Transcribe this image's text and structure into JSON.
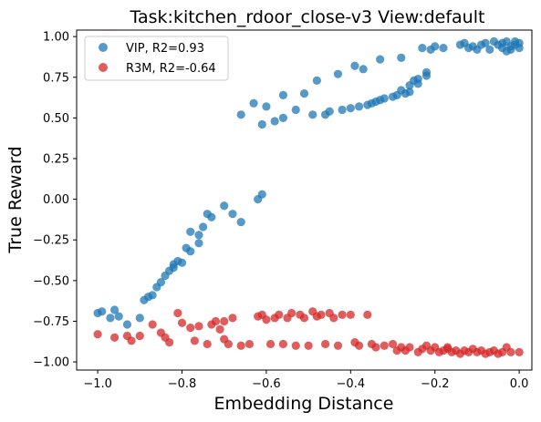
{
  "chart_data": {
    "type": "scatter",
    "title": "Task:kitchen_rdoor_close-v3 View:default",
    "xlabel": "Embedding Distance",
    "ylabel": "True Reward",
    "xlim": [
      -1.05,
      0.03
    ],
    "ylim": [
      -1.05,
      1.04
    ],
    "xticks": [
      "−1.0",
      "−0.8",
      "−0.6",
      "−0.4",
      "−0.2",
      "0.0"
    ],
    "xtick_values": [
      -1.0,
      -0.8,
      -0.6,
      -0.4,
      -0.2,
      0.0
    ],
    "yticks": [
      "1.00",
      "0.75",
      "0.50",
      "0.25",
      "0.00",
      "−0.25",
      "−0.50",
      "−0.75",
      "−1.00"
    ],
    "ytick_values": [
      1.0,
      0.75,
      0.5,
      0.25,
      0.0,
      -0.25,
      -0.5,
      -0.75,
      -1.0
    ],
    "legend": "upper left",
    "series": [
      {
        "name": "VIP, R2=0.93",
        "color": "#1f77b4",
        "points": [
          [
            -1.0,
            -0.7
          ],
          [
            -0.99,
            -0.69
          ],
          [
            -0.97,
            -0.73
          ],
          [
            -0.96,
            -0.68
          ],
          [
            -0.95,
            -0.72
          ],
          [
            -0.93,
            -0.77
          ],
          [
            -0.9,
            -0.73
          ],
          [
            -0.89,
            -0.62
          ],
          [
            -0.88,
            -0.6
          ],
          [
            -0.87,
            -0.59
          ],
          [
            -0.86,
            -0.54
          ],
          [
            -0.85,
            -0.51
          ],
          [
            -0.84,
            -0.47
          ],
          [
            -0.83,
            -0.44
          ],
          [
            -0.82,
            -0.42
          ],
          [
            -0.82,
            -0.4
          ],
          [
            -0.81,
            -0.38
          ],
          [
            -0.8,
            -0.39
          ],
          [
            -0.79,
            -0.3
          ],
          [
            -0.78,
            -0.32
          ],
          [
            -0.78,
            -0.2
          ],
          [
            -0.76,
            -0.27
          ],
          [
            -0.76,
            -0.22
          ],
          [
            -0.75,
            -0.17
          ],
          [
            -0.74,
            -0.09
          ],
          [
            -0.73,
            -0.11
          ],
          [
            -0.7,
            -0.04
          ],
          [
            -0.68,
            -0.09
          ],
          [
            -0.66,
            -0.14
          ],
          [
            -0.62,
            0.0
          ],
          [
            -0.61,
            0.03
          ],
          [
            -0.66,
            0.52
          ],
          [
            -0.63,
            0.59
          ],
          [
            -0.61,
            0.46
          ],
          [
            -0.6,
            0.57
          ],
          [
            -0.58,
            0.48
          ],
          [
            -0.56,
            0.64
          ],
          [
            -0.56,
            0.5
          ],
          [
            -0.53,
            0.55
          ],
          [
            -0.51,
            0.65
          ],
          [
            -0.49,
            0.52
          ],
          [
            -0.48,
            0.73
          ],
          [
            -0.46,
            0.52
          ],
          [
            -0.45,
            0.54
          ],
          [
            -0.43,
            0.77
          ],
          [
            -0.42,
            0.55
          ],
          [
            -0.4,
            0.56
          ],
          [
            -0.39,
            0.82
          ],
          [
            -0.38,
            0.57
          ],
          [
            -0.37,
            0.8
          ],
          [
            -0.36,
            0.58
          ],
          [
            -0.35,
            0.59
          ],
          [
            -0.34,
            0.6
          ],
          [
            -0.33,
            0.86
          ],
          [
            -0.33,
            0.61
          ],
          [
            -0.32,
            0.62
          ],
          [
            -0.3,
            0.63
          ],
          [
            -0.29,
            0.64
          ],
          [
            -0.28,
            0.67
          ],
          [
            -0.28,
            0.87
          ],
          [
            -0.27,
            0.65
          ],
          [
            -0.26,
            0.66
          ],
          [
            -0.26,
            0.7
          ],
          [
            -0.25,
            0.73
          ],
          [
            -0.24,
            0.74
          ],
          [
            -0.24,
            0.71
          ],
          [
            -0.23,
            0.93
          ],
          [
            -0.22,
            0.78
          ],
          [
            -0.22,
            0.76
          ],
          [
            -0.21,
            0.92
          ],
          [
            -0.2,
            0.94
          ],
          [
            -0.18,
            0.93
          ],
          [
            -0.14,
            0.95
          ],
          [
            -0.13,
            0.96
          ],
          [
            -0.12,
            0.93
          ],
          [
            -0.11,
            0.94
          ],
          [
            -0.1,
            0.92
          ],
          [
            -0.09,
            0.95
          ],
          [
            -0.08,
            0.96
          ],
          [
            -0.07,
            0.92
          ],
          [
            -0.06,
            0.97
          ],
          [
            -0.05,
            0.95
          ],
          [
            -0.04,
            0.93
          ],
          [
            -0.04,
            0.96
          ],
          [
            -0.03,
            0.97
          ],
          [
            -0.02,
            0.94
          ],
          [
            -0.02,
            0.92
          ],
          [
            -0.01,
            0.95
          ],
          [
            -0.01,
            0.97
          ],
          [
            0.0,
            0.93
          ],
          [
            0.0,
            0.96
          ],
          [
            -0.03,
            0.91
          ]
        ]
      },
      {
        "name": "R3M, R2=-0.64",
        "color": "#d62728",
        "points": [
          [
            -1.0,
            -0.83
          ],
          [
            -0.96,
            -0.85
          ],
          [
            -0.93,
            -0.84
          ],
          [
            -0.92,
            -0.87
          ],
          [
            -0.9,
            -0.84
          ],
          [
            -0.87,
            -0.77
          ],
          [
            -0.85,
            -0.82
          ],
          [
            -0.84,
            -0.85
          ],
          [
            -0.83,
            -0.88
          ],
          [
            -0.81,
            -0.7
          ],
          [
            -0.8,
            -0.76
          ],
          [
            -0.78,
            -0.79
          ],
          [
            -0.77,
            -0.87
          ],
          [
            -0.76,
            -0.78
          ],
          [
            -0.74,
            -0.89
          ],
          [
            -0.73,
            -0.77
          ],
          [
            -0.72,
            -0.75
          ],
          [
            -0.71,
            -0.8
          ],
          [
            -0.7,
            -0.75
          ],
          [
            -0.7,
            -0.86
          ],
          [
            -0.69,
            -0.89
          ],
          [
            -0.68,
            -0.73
          ],
          [
            -0.66,
            -0.9
          ],
          [
            -0.64,
            -0.89
          ],
          [
            -0.62,
            -0.72
          ],
          [
            -0.61,
            -0.71
          ],
          [
            -0.6,
            -0.74
          ],
          [
            -0.59,
            -0.89
          ],
          [
            -0.58,
            -0.73
          ],
          [
            -0.57,
            -0.71
          ],
          [
            -0.56,
            -0.89
          ],
          [
            -0.55,
            -0.73
          ],
          [
            -0.54,
            -0.7
          ],
          [
            -0.53,
            -0.9
          ],
          [
            -0.52,
            -0.71
          ],
          [
            -0.51,
            -0.73
          ],
          [
            -0.5,
            -0.9
          ],
          [
            -0.49,
            -0.69
          ],
          [
            -0.48,
            -0.72
          ],
          [
            -0.47,
            -0.71
          ],
          [
            -0.46,
            -0.89
          ],
          [
            -0.45,
            -0.7
          ],
          [
            -0.44,
            -0.73
          ],
          [
            -0.43,
            -0.9
          ],
          [
            -0.42,
            -0.71
          ],
          [
            -0.4,
            -0.71
          ],
          [
            -0.39,
            -0.88
          ],
          [
            -0.38,
            -0.9
          ],
          [
            -0.36,
            -0.71
          ],
          [
            -0.35,
            -0.89
          ],
          [
            -0.34,
            -0.91
          ],
          [
            -0.32,
            -0.9
          ],
          [
            -0.3,
            -0.89
          ],
          [
            -0.29,
            -0.93
          ],
          [
            -0.28,
            -0.91
          ],
          [
            -0.27,
            -0.93
          ],
          [
            -0.26,
            -0.91
          ],
          [
            -0.24,
            -0.94
          ],
          [
            -0.23,
            -0.92
          ],
          [
            -0.22,
            -0.9
          ],
          [
            -0.21,
            -0.93
          ],
          [
            -0.2,
            -0.91
          ],
          [
            -0.19,
            -0.94
          ],
          [
            -0.18,
            -0.93
          ],
          [
            -0.17,
            -0.92
          ],
          [
            -0.16,
            -0.94
          ],
          [
            -0.15,
            -0.93
          ],
          [
            -0.14,
            -0.95
          ],
          [
            -0.13,
            -0.93
          ],
          [
            -0.12,
            -0.94
          ],
          [
            -0.11,
            -0.92
          ],
          [
            -0.1,
            -0.94
          ],
          [
            -0.09,
            -0.93
          ],
          [
            -0.08,
            -0.95
          ],
          [
            -0.07,
            -0.94
          ],
          [
            -0.06,
            -0.93
          ],
          [
            -0.05,
            -0.95
          ],
          [
            -0.04,
            -0.94
          ],
          [
            -0.03,
            -0.91
          ],
          [
            -0.02,
            -0.94
          ],
          [
            0.0,
            -0.94
          ],
          [
            -0.17,
            -0.91
          ]
        ]
      }
    ]
  }
}
